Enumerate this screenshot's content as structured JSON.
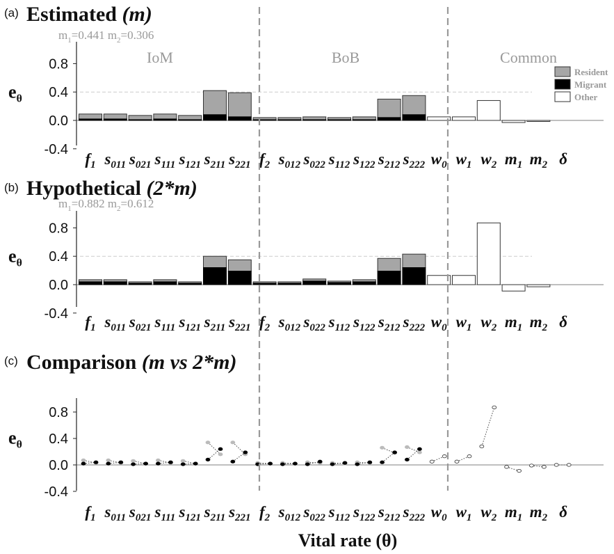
{
  "figure": {
    "panels": [
      {
        "tag": "(a)",
        "title_main": "Estimated",
        "title_italic": "(m)",
        "mvals": [
          "m",
          "1",
          "=0.441 m",
          "2",
          "=0.306"
        ]
      },
      {
        "tag": "(b)",
        "title_main": "Hypothetical",
        "title_italic": "(2*m)",
        "mvals": [
          "m",
          "1",
          "=0.882 m",
          "2",
          "=0.612"
        ]
      },
      {
        "tag": "(c)",
        "title_main": "Comparison",
        "title_italic": "(m vs 2*m)",
        "mvals": []
      }
    ],
    "group_labels": [
      "IoM",
      "BoB",
      "Common"
    ],
    "ylabel": {
      "base": "e",
      "sub": "θ"
    },
    "xlabel": "Vital rate (θ)",
    "legend": [
      {
        "label": "Resident",
        "color": "#a6a6a6"
      },
      {
        "label": "Migrant",
        "color": "#000000"
      },
      {
        "label": "Other",
        "color": "#ffffff"
      }
    ],
    "yticks": [
      "0.8",
      "0.4",
      "0.0",
      "-0.4"
    ],
    "categories": [
      {
        "b": "f",
        "s": "1"
      },
      {
        "b": "s",
        "s": "011"
      },
      {
        "b": "s",
        "s": "021"
      },
      {
        "b": "s",
        "s": "111"
      },
      {
        "b": "s",
        "s": "121"
      },
      {
        "b": "s",
        "s": "211"
      },
      {
        "b": "s",
        "s": "221"
      },
      {
        "b": "f",
        "s": "2"
      },
      {
        "b": "s",
        "s": "012"
      },
      {
        "b": "s",
        "s": "022"
      },
      {
        "b": "s",
        "s": "112"
      },
      {
        "b": "s",
        "s": "122"
      },
      {
        "b": "s",
        "s": "212"
      },
      {
        "b": "s",
        "s": "222"
      },
      {
        "b": "w",
        "s": "0"
      },
      {
        "b": "w",
        "s": "1"
      },
      {
        "b": "w",
        "s": "2"
      },
      {
        "b": "m",
        "s": "1"
      },
      {
        "b": "m",
        "s": "2"
      },
      {
        "b": "δ",
        "s": ""
      }
    ]
  },
  "chart_data": [
    {
      "type": "bar",
      "title": "Estimated (m)",
      "ylabel": "eθ",
      "ylim": [
        -0.4,
        1.0
      ],
      "reference_line": 0.4,
      "series": [
        {
          "name": "Migrant",
          "values": [
            0.02,
            0.02,
            0.01,
            0.02,
            0.01,
            0.08,
            0.05,
            0.01,
            0.01,
            0.01,
            0.01,
            0.01,
            0.04,
            0.08,
            0,
            0,
            0,
            0,
            0,
            0
          ]
        },
        {
          "name": "Resident",
          "values": [
            0.07,
            0.07,
            0.06,
            0.07,
            0.06,
            0.34,
            0.34,
            0.03,
            0.03,
            0.04,
            0.03,
            0.04,
            0.26,
            0.27,
            0,
            0,
            0,
            0,
            0,
            0
          ]
        },
        {
          "name": "Other",
          "values": [
            0,
            0,
            0,
            0,
            0,
            0,
            0,
            0,
            0,
            0,
            0,
            0,
            0,
            0,
            0.05,
            0.05,
            0.28,
            -0.03,
            -0.01,
            0
          ]
        }
      ]
    },
    {
      "type": "bar",
      "title": "Hypothetical (2*m)",
      "ylabel": "eθ",
      "ylim": [
        -0.4,
        1.0
      ],
      "reference_line": 0.4,
      "series": [
        {
          "name": "Migrant",
          "values": [
            0.04,
            0.04,
            0.02,
            0.04,
            0.02,
            0.24,
            0.19,
            0.02,
            0.02,
            0.05,
            0.03,
            0.04,
            0.19,
            0.24,
            0,
            0,
            0,
            0,
            0,
            0
          ]
        },
        {
          "name": "Resident",
          "values": [
            0.03,
            0.03,
            0.02,
            0.03,
            0.02,
            0.16,
            0.16,
            0.02,
            0.02,
            0.03,
            0.02,
            0.03,
            0.18,
            0.19,
            0,
            0,
            0,
            0,
            0,
            0
          ]
        },
        {
          "name": "Other",
          "values": [
            0,
            0,
            0,
            0,
            0,
            0,
            0,
            0,
            0,
            0,
            0,
            0,
            0,
            0,
            0.13,
            0.13,
            0.87,
            -0.09,
            -0.03,
            0
          ]
        }
      ]
    },
    {
      "type": "scatter",
      "title": "Comparison (m vs 2*m)",
      "ylabel": "eθ",
      "xlabel": "Vital rate (θ)",
      "ylim": [
        -0.4,
        0.9
      ],
      "series": [
        {
          "name": "Resident",
          "m": [
            0.07,
            0.07,
            0.06,
            0.07,
            0.06,
            0.34,
            0.34,
            0.03,
            0.03,
            0.04,
            0.03,
            0.04,
            0.26,
            0.27,
            null,
            null,
            null,
            null,
            null,
            null
          ],
          "m2": [
            0.03,
            0.03,
            0.02,
            0.03,
            0.02,
            0.16,
            0.16,
            0.02,
            0.02,
            0.03,
            0.02,
            0.03,
            0.18,
            0.19,
            null,
            null,
            null,
            null,
            null,
            null
          ]
        },
        {
          "name": "Migrant",
          "m": [
            0.02,
            0.02,
            0.01,
            0.02,
            0.01,
            0.08,
            0.05,
            0.01,
            0.01,
            0.01,
            0.01,
            0.01,
            0.04,
            0.08,
            null,
            null,
            null,
            null,
            null,
            null
          ],
          "m2": [
            0.04,
            0.04,
            0.02,
            0.04,
            0.02,
            0.24,
            0.19,
            0.02,
            0.02,
            0.05,
            0.03,
            0.04,
            0.19,
            0.24,
            null,
            null,
            null,
            null,
            null,
            null
          ]
        },
        {
          "name": "Other",
          "m": [
            null,
            null,
            null,
            null,
            null,
            null,
            null,
            null,
            null,
            null,
            null,
            null,
            null,
            null,
            0.05,
            0.05,
            0.28,
            -0.03,
            -0.01,
            0
          ],
          "m2": [
            null,
            null,
            null,
            null,
            null,
            null,
            null,
            null,
            null,
            null,
            null,
            null,
            null,
            null,
            0.13,
            0.13,
            0.87,
            -0.09,
            -0.03,
            0
          ]
        }
      ]
    }
  ]
}
